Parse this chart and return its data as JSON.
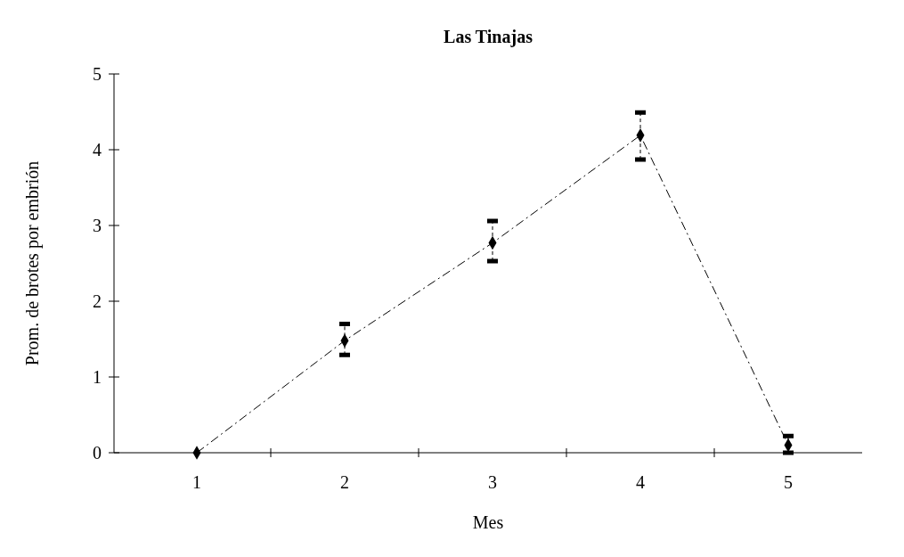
{
  "chart_data": {
    "type": "line",
    "title": "Las Tinajas",
    "xlabel": "Mes",
    "ylabel": "Prom. de brotes por embrión",
    "categories": [
      "1",
      "2",
      "3",
      "4",
      "5"
    ],
    "series": [
      {
        "color": "#000000",
        "values": [
          0,
          1.48,
          2.77,
          4.19,
          0.1
        ],
        "errors": [
          null,
          [
            1.29,
            1.7
          ],
          [
            2.53,
            3.06
          ],
          [
            3.87,
            4.49
          ],
          [
            0,
            0.22
          ]
        ]
      }
    ],
    "ylim": [
      0,
      5
    ],
    "yticks": [
      0,
      1,
      2,
      3,
      4,
      5
    ],
    "marker": "diamond",
    "line_style": "dashed",
    "grid": false
  }
}
